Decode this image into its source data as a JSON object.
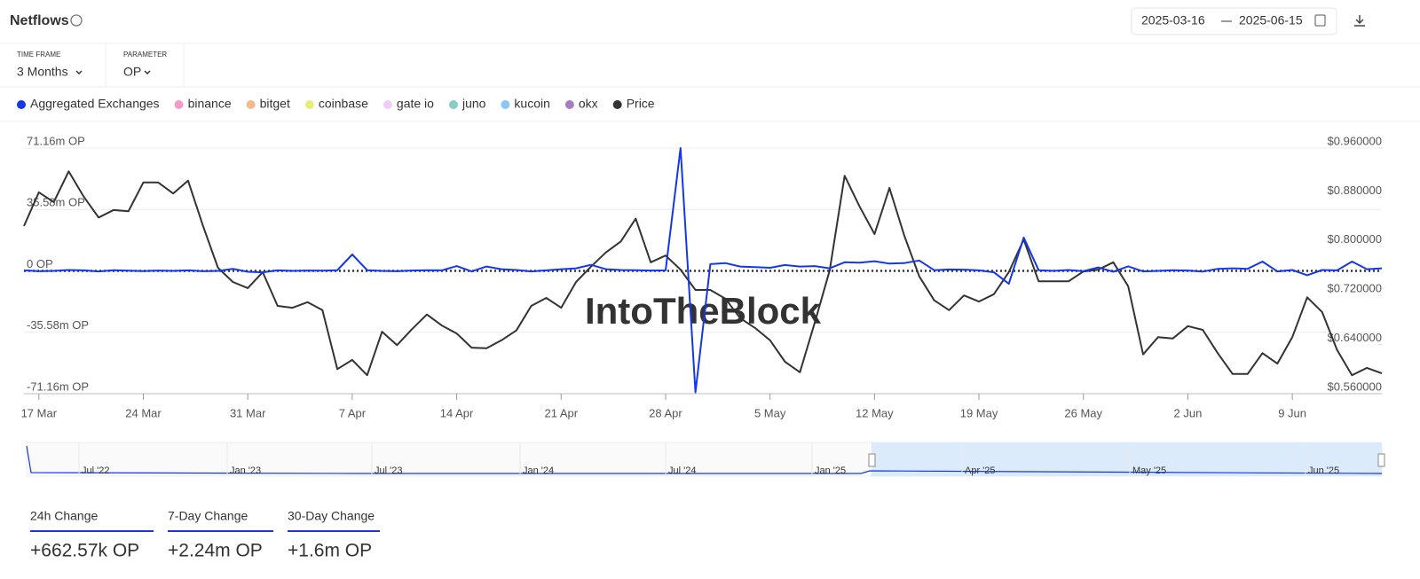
{
  "header": {
    "title": "Netflows",
    "date_from": "2025-03-16",
    "date_to": "2025-06-15"
  },
  "filters": [
    {
      "label": "TIME FRAME",
      "value": "3 Months"
    },
    {
      "label": "PARAMETER",
      "value": "OP"
    }
  ],
  "watermark": "IntoTheBlock",
  "navigator_labels": [
    "Jul '22",
    "Jan '23",
    "Jul '23",
    "Jan '24",
    "Jul '24",
    "Jan '25",
    "Apr '25",
    "May '25",
    "Jun '25"
  ],
  "stats": [
    {
      "label": "24h Change",
      "value": "+662.57k OP"
    },
    {
      "label": "7-Day Change",
      "value": "+2.24m OP"
    },
    {
      "label": "30-Day Change",
      "value": "+1.6m OP"
    }
  ],
  "chart_data": {
    "type": "line",
    "categories": [
      null,
      "17 Mar",
      null,
      null,
      null,
      null,
      null,
      null,
      "24 Mar",
      null,
      null,
      null,
      null,
      null,
      null,
      "31 Mar",
      null,
      null,
      null,
      null,
      null,
      null,
      "7 Apr",
      null,
      null,
      null,
      null,
      null,
      null,
      "14 Apr",
      null,
      null,
      null,
      null,
      null,
      null,
      "21 Apr",
      null,
      null,
      null,
      null,
      null,
      null,
      "28 Apr",
      null,
      null,
      null,
      null,
      null,
      null,
      "5 May",
      null,
      null,
      null,
      null,
      null,
      null,
      "12 May",
      null,
      null,
      null,
      null,
      null,
      null,
      "19 May",
      null,
      null,
      null,
      null,
      null,
      null,
      "26 May",
      null,
      null,
      null,
      null,
      null,
      null,
      "2 Jun",
      null,
      null,
      null,
      null,
      null,
      null,
      "9 Jun",
      null,
      null,
      null,
      null,
      null,
      null
    ],
    "series": [
      {
        "name": "Aggregated Exchanges",
        "color": "#1437e8",
        "axis": "y",
        "values": [
          300000,
          -200000,
          0,
          500000,
          300000,
          -300000,
          400000,
          100000,
          -100000,
          200000,
          0,
          300000,
          -200000,
          0,
          1200000,
          -500000,
          -800000,
          300000,
          0,
          200000,
          100000,
          400000,
          9500000,
          400000,
          0,
          -200000,
          200000,
          400000,
          300000,
          2800000,
          -300000,
          2500000,
          1000000,
          500000,
          -300000,
          300000,
          1000000,
          1500000,
          3500000,
          1000000,
          500000,
          400000,
          200000,
          300000,
          71160000,
          -70400000,
          3900000,
          4500000,
          2500000,
          2200000,
          1800000,
          3400000,
          2500000,
          2800000,
          1500000,
          5000000,
          4800000,
          5600000,
          4200000,
          4500000,
          6000000,
          400000,
          800000,
          700000,
          300000,
          -800000,
          -7500000,
          19300000,
          400000,
          0,
          500000,
          -200000,
          2000000,
          -500000,
          2600000,
          -300000,
          0,
          400000,
          200000,
          -400000,
          1200000,
          1500000,
          1200000,
          5400000,
          -300000,
          500000,
          -2500000,
          500000,
          300000,
          5400000,
          1000000,
          1500000
        ]
      },
      {
        "name": "Price",
        "color": "#333333",
        "axis": "y2",
        "values": [
          0.833,
          0.888,
          0.872,
          0.922,
          0.881,
          0.847,
          0.859,
          0.857,
          0.904,
          0.904,
          0.886,
          0.907,
          0.833,
          0.765,
          0.742,
          0.732,
          0.758,
          0.703,
          0.7,
          0.709,
          0.696,
          0.6,
          0.615,
          0.59,
          0.661,
          0.639,
          0.665,
          0.689,
          0.671,
          0.658,
          0.635,
          0.634,
          0.647,
          0.663,
          0.703,
          0.716,
          0.7,
          0.742,
          0.767,
          0.79,
          0.808,
          0.845,
          0.774,
          0.785,
          0.762,
          0.729,
          0.729,
          0.715,
          0.683,
          0.667,
          0.647,
          0.612,
          0.595,
          0.676,
          0.761,
          0.915,
          0.865,
          0.82,
          0.895,
          0.817,
          0.751,
          0.712,
          0.696,
          0.72,
          0.71,
          0.722,
          0.758,
          0.811,
          0.743,
          0.743,
          0.743,
          0.759,
          0.762,
          0.774,
          0.735,
          0.624,
          0.652,
          0.65,
          0.67,
          0.664,
          0.626,
          0.592,
          0.592,
          0.626,
          0.609,
          0.652,
          0.717,
          0.693,
          0.631,
          0.59,
          0.602,
          0.593
        ]
      }
    ],
    "hidden_series": [
      {
        "name": "binance",
        "color": "#f49ac8"
      },
      {
        "name": "bitget",
        "color": "#f7b98e"
      },
      {
        "name": "coinbase",
        "color": "#e9ec7a"
      },
      {
        "name": "gate io",
        "color": "#eecdf7"
      },
      {
        "name": "juno",
        "color": "#86cfc9"
      },
      {
        "name": "kucoin",
        "color": "#8cc6f2"
      },
      {
        "name": "okx",
        "color": "#a37fc2"
      }
    ],
    "ylim": [
      -71160000,
      71160000
    ],
    "yticks": [
      {
        "value": 71160000,
        "label": "71.16m OP"
      },
      {
        "value": 35580000,
        "label": "35.58m OP"
      },
      {
        "value": 0,
        "label": "0 OP"
      },
      {
        "value": -35580000,
        "label": "-35.58m OP"
      },
      {
        "value": -71160000,
        "label": "-71.16m OP"
      }
    ],
    "y2lim": [
      0.56,
      0.96
    ],
    "y2ticks": [
      {
        "value": 0.96,
        "label": "$0.960000"
      },
      {
        "value": 0.88,
        "label": "$0.880000"
      },
      {
        "value": 0.8,
        "label": "$0.800000"
      },
      {
        "value": 0.72,
        "label": "$0.720000"
      },
      {
        "value": 0.64,
        "label": "$0.640000"
      },
      {
        "value": 0.56,
        "label": "$0.560000"
      }
    ],
    "grid": true
  }
}
